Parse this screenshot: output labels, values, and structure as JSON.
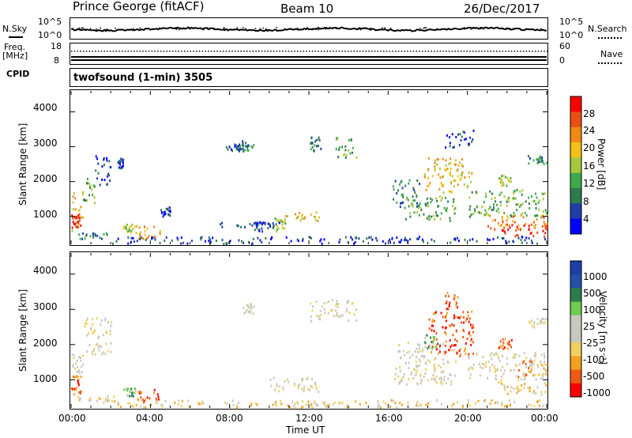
{
  "header": {
    "station": "Prince George (fitACF)",
    "beam": "Beam 10",
    "date": "26/Dec/2017"
  },
  "noise_panel": {
    "left_label": "N.Sky",
    "right_label": "N.Search",
    "left_ticks": [
      "10^5",
      "10^0"
    ],
    "right_ticks": [
      "10^5",
      "10^0"
    ]
  },
  "freq_panel": {
    "left_label_1": "Freq.",
    "left_label_2": "[MHz]",
    "left_ticks": [
      "18",
      "8"
    ],
    "right_ticks": [
      "60",
      "0"
    ],
    "right_label": "Nave"
  },
  "cpid_panel": {
    "label": "CPID",
    "mode": "twofsound (1-min) 3505"
  },
  "colors": {
    "power": [
      "#0000ff",
      "#1f3fa8",
      "#2e7b4e",
      "#3fa94a",
      "#a8c83c",
      "#f2c018",
      "#f08a14",
      "#e85010",
      "#ff0000"
    ],
    "velocity": [
      "#ff0000",
      "#f05a10",
      "#f2a020",
      "#f2d060",
      "#c8c8c0",
      "#c8c8c0",
      "#70cc50",
      "#2e7b4e",
      "#2550a8",
      "#1f3fa8"
    ]
  },
  "chart_data": [
    {
      "type": "heatmap",
      "name": "power",
      "ylabel": "Slant Range [km]",
      "yticks": [
        "1000",
        "2000",
        "3000",
        "4000"
      ],
      "ylim": [
        200,
        4600
      ],
      "colorbar_label": "Power [dB]",
      "colorbar_ticks": [
        "4",
        "8",
        "12",
        "16",
        "20",
        "24",
        "28"
      ],
      "colorbar_range": [
        0,
        32
      ],
      "xlim_hours": [
        0,
        24
      ],
      "regions": [
        {
          "t0": 0.0,
          "t1": 0.6,
          "r0": 600,
          "r1": 1800,
          "level": 5
        },
        {
          "t0": 0.0,
          "t1": 0.5,
          "r0": 700,
          "r1": 1100,
          "level": 8
        },
        {
          "t0": 0.6,
          "t1": 1.2,
          "r0": 1400,
          "r1": 2200,
          "level": 3
        },
        {
          "t0": 1.2,
          "t1": 2.0,
          "r0": 1900,
          "r1": 2800,
          "level": 1
        },
        {
          "t0": 0.3,
          "t1": 2.2,
          "r0": 380,
          "r1": 560,
          "level": 2
        },
        {
          "t0": 2.3,
          "t1": 2.6,
          "r0": 2400,
          "r1": 2700,
          "level": 1
        },
        {
          "t0": 2.6,
          "t1": 3.3,
          "r0": 550,
          "r1": 800,
          "level": 4
        },
        {
          "t0": 3.3,
          "t1": 4.5,
          "r0": 380,
          "r1": 750,
          "level": 6
        },
        {
          "t0": 4.5,
          "t1": 5.0,
          "r0": 1000,
          "r1": 1300,
          "level": 1
        },
        {
          "t0": 7.8,
          "t1": 8.5,
          "r0": 2900,
          "r1": 3100,
          "level": 1
        },
        {
          "t0": 8.5,
          "t1": 9.2,
          "r0": 2900,
          "r1": 3200,
          "level": 2
        },
        {
          "t0": 9.2,
          "t1": 10.0,
          "r0": 600,
          "r1": 900,
          "level": 1
        },
        {
          "t0": 10.0,
          "t1": 10.8,
          "r0": 600,
          "r1": 1000,
          "level": 4
        },
        {
          "t0": 10.8,
          "t1": 12.5,
          "r0": 900,
          "r1": 1200,
          "level": 5
        },
        {
          "t0": 12.0,
          "t1": 12.6,
          "r0": 2900,
          "r1": 3300,
          "level": 2
        },
        {
          "t0": 13.3,
          "t1": 14.4,
          "r0": 2700,
          "r1": 3300,
          "level": 3
        },
        {
          "t0": 7.5,
          "t1": 10.5,
          "r0": 700,
          "r1": 850,
          "level": 1
        },
        {
          "t0": 2.0,
          "t1": 16.5,
          "r0": 240,
          "r1": 440,
          "level": 1
        },
        {
          "t0": 16.2,
          "t1": 17.6,
          "r0": 1300,
          "r1": 2100,
          "level": 2
        },
        {
          "t0": 16.8,
          "t1": 19.4,
          "r0": 900,
          "r1": 1600,
          "level": 3
        },
        {
          "t0": 17.8,
          "t1": 20.2,
          "r0": 1700,
          "r1": 2700,
          "level": 5
        },
        {
          "t0": 18.8,
          "t1": 20.3,
          "r0": 3000,
          "r1": 3500,
          "level": 1
        },
        {
          "t0": 20.0,
          "t1": 24.0,
          "r0": 1000,
          "r1": 1800,
          "level": 3
        },
        {
          "t0": 21.0,
          "t1": 24.0,
          "r0": 650,
          "r1": 1100,
          "level": 6
        },
        {
          "t0": 21.5,
          "t1": 24.0,
          "r0": 450,
          "r1": 800,
          "level": 8
        },
        {
          "t0": 21.5,
          "t1": 22.2,
          "r0": 1900,
          "r1": 2200,
          "level": 4
        },
        {
          "t0": 23.0,
          "t1": 24.0,
          "r0": 2500,
          "r1": 2800,
          "level": 2
        },
        {
          "t0": 16.0,
          "t1": 24.0,
          "r0": 250,
          "r1": 450,
          "level": 1
        }
      ]
    },
    {
      "type": "heatmap",
      "name": "velocity",
      "ylabel": "Slant Range [km]",
      "yticks": [
        "1000",
        "2000",
        "3000",
        "4000"
      ],
      "ylim": [
        200,
        4600
      ],
      "colorbar_label": "Velocity [m s⁻¹]",
      "colorbar_ticks": [
        "1000",
        "500",
        "100",
        "25",
        "-25",
        "-100",
        "-500",
        "-1000"
      ],
      "xlim_hours": [
        0,
        24
      ],
      "xticks": [
        "00:00",
        "04:00",
        "08:00",
        "12:00",
        "16:00",
        "20:00",
        "00:00"
      ],
      "xlabel": "Time UT",
      "regions": [
        {
          "t0": 0.0,
          "t1": 0.6,
          "r0": 1200,
          "r1": 1800,
          "level": 4
        },
        {
          "t0": 0.0,
          "t1": 0.5,
          "r0": 600,
          "r1": 1200,
          "level": 1
        },
        {
          "t0": 0.6,
          "t1": 2.0,
          "r0": 1700,
          "r1": 2800,
          "level": 4
        },
        {
          "t0": 0.3,
          "t1": 2.2,
          "r0": 380,
          "r1": 560,
          "level": 3
        },
        {
          "t0": 2.6,
          "t1": 3.3,
          "r0": 550,
          "r1": 800,
          "level": 6
        },
        {
          "t0": 3.3,
          "t1": 4.5,
          "r0": 380,
          "r1": 750,
          "level": 1
        },
        {
          "t0": 8.5,
          "t1": 9.2,
          "r0": 2900,
          "r1": 3200,
          "level": 4
        },
        {
          "t0": 10.0,
          "t1": 12.5,
          "r0": 650,
          "r1": 1100,
          "level": 4
        },
        {
          "t0": 12.0,
          "t1": 14.4,
          "r0": 2700,
          "r1": 3300,
          "level": 4
        },
        {
          "t0": 2.0,
          "t1": 16.5,
          "r0": 240,
          "r1": 440,
          "level": 3
        },
        {
          "t0": 16.2,
          "t1": 19.4,
          "r0": 900,
          "r1": 2100,
          "level": 4
        },
        {
          "t0": 18.0,
          "t1": 20.3,
          "r0": 1700,
          "r1": 3000,
          "level": 1
        },
        {
          "t0": 17.8,
          "t1": 18.5,
          "r0": 1900,
          "r1": 2300,
          "level": 6
        },
        {
          "t0": 18.8,
          "t1": 19.5,
          "r0": 3000,
          "r1": 3500,
          "level": 1
        },
        {
          "t0": 20.0,
          "t1": 24.0,
          "r0": 1000,
          "r1": 1800,
          "level": 4
        },
        {
          "t0": 21.5,
          "t1": 24.0,
          "r0": 600,
          "r1": 1000,
          "level": 3
        },
        {
          "t0": 22.5,
          "t1": 24.0,
          "r0": 1100,
          "r1": 1600,
          "level": 2
        },
        {
          "t0": 21.5,
          "t1": 22.2,
          "r0": 1900,
          "r1": 2200,
          "level": 1
        },
        {
          "t0": 23.0,
          "t1": 24.0,
          "r0": 2500,
          "r1": 2800,
          "level": 4
        },
        {
          "t0": 16.0,
          "t1": 24.0,
          "r0": 250,
          "r1": 450,
          "level": 3
        }
      ]
    }
  ]
}
